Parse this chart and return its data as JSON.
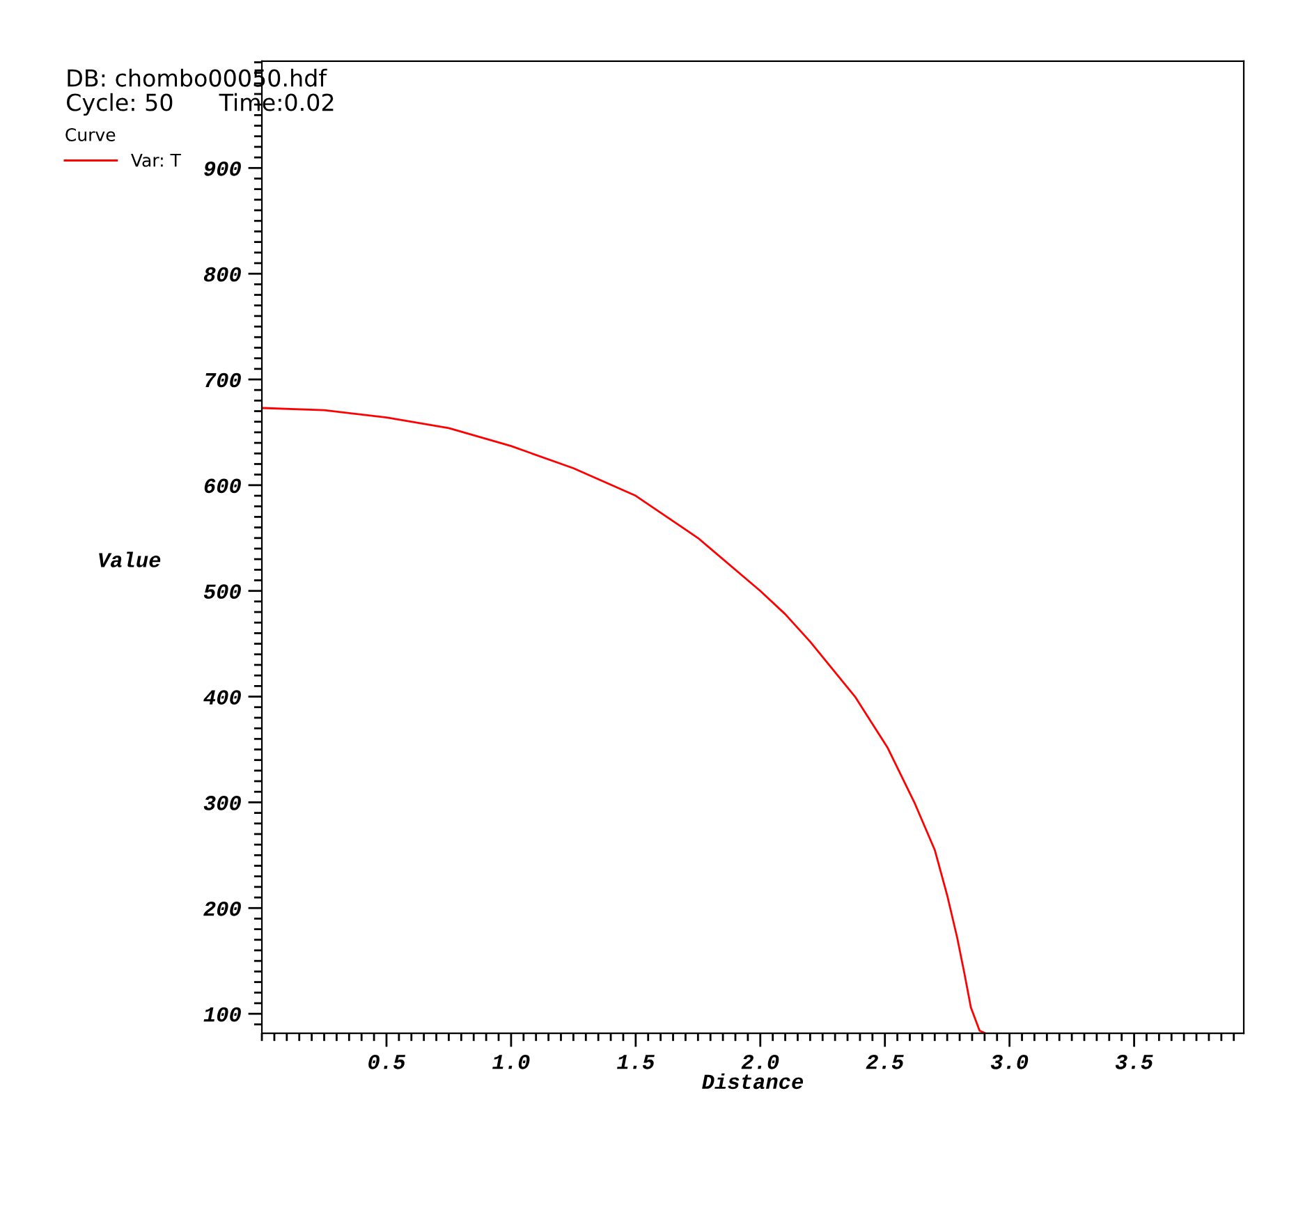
{
  "chart_data": {
    "type": "line",
    "xlabel": "Distance",
    "ylabel": "Value",
    "annotations": [
      "DB: chombo00050.hdf",
      "Cycle: 50",
      "Time:0.02"
    ],
    "legend_title": "Curve",
    "legend": "top left",
    "x": [
      0,
      0.25,
      0.5,
      0.75,
      1.0,
      1.25,
      1.5,
      1.75,
      2.0,
      2.1,
      2.2,
      2.38,
      2.51,
      2.62,
      2.7,
      2.75,
      2.79,
      2.82,
      2.845,
      2.88,
      2.9
    ],
    "series": [
      {
        "name": "Var: T",
        "color": "#ff0000",
        "values": [
          673,
          671,
          664,
          654,
          637,
          616,
          590,
          550,
          500,
          478,
          452,
          400,
          352,
          299,
          255,
          212,
          172,
          137,
          106,
          84,
          82
        ]
      }
    ],
    "xlim": [
      0,
      3.94
    ],
    "ylim": [
      81.6,
      1001
    ],
    "xticks": [
      0.5,
      {
        "value": 1,
        "label": "1.0"
      },
      1.5,
      {
        "value": 2,
        "label": "2.0"
      },
      2.5,
      {
        "value": 3,
        "label": "3.0"
      },
      3.5
    ],
    "yticks": [
      100,
      200,
      300,
      400,
      500,
      600,
      700,
      800,
      900
    ],
    "grid": false,
    "marker": "none",
    "line_style": "solid"
  }
}
